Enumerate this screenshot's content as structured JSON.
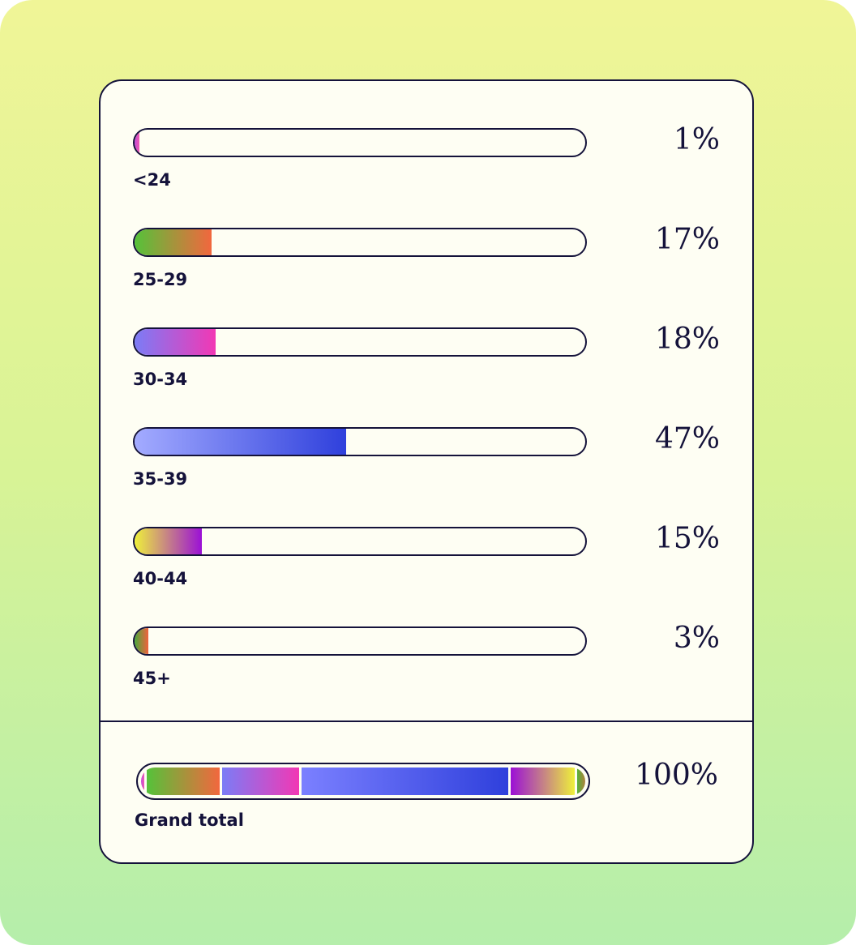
{
  "chart_data": {
    "type": "bar",
    "orientation": "horizontal",
    "categories": [
      "<24",
      "25-29",
      "30-34",
      "35-39",
      "40-44",
      "45+"
    ],
    "values": [
      1,
      17,
      18,
      47,
      15,
      3
    ],
    "value_labels": [
      "1%",
      "17%",
      "18%",
      "47%",
      "15%",
      "3%"
    ],
    "xlim": [
      0,
      100
    ],
    "grid": false,
    "legend": "none",
    "bar_gradients": [
      [
        "#c04ad8",
        "#f05ab0"
      ],
      [
        "#55c23a",
        "#f2673e"
      ],
      [
        "#7b7cf6",
        "#f238b4"
      ],
      [
        "#a3abff",
        "#2f40dc"
      ],
      [
        "#eef03a",
        "#9b10d6"
      ],
      [
        "#4aa83a",
        "#f0613d"
      ]
    ],
    "total": {
      "label": "Grand total",
      "value_label": "100%",
      "segment_gradients": [
        [
          "#c04ad8",
          "#f05ab0"
        ],
        [
          "#55c23a",
          "#f2673e"
        ],
        [
          "#7b7cf6",
          "#f238b4"
        ],
        [
          "#7b80ff",
          "#2f40dc"
        ],
        [
          "#9b10d6",
          "#eef03a"
        ],
        [
          "#55b03a",
          "#f0613d"
        ]
      ]
    }
  },
  "colors": {
    "ink": "#14123a",
    "card": "#fefef3",
    "background_top": "#f0f597",
    "background_bottom": "#b5eeab"
  }
}
